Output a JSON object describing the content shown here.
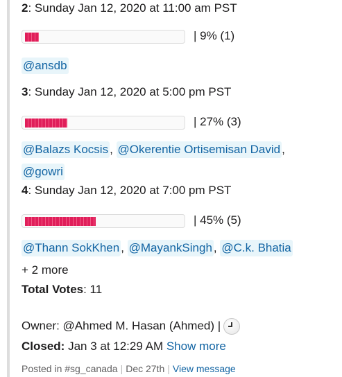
{
  "options": [
    {
      "number": "2",
      "label": ": Sunday Jan 12, 2020 at 11:00 am PST",
      "fraction": 0.09,
      "result": "|  9% (1)",
      "voters": [
        "@ansdb"
      ],
      "more": ""
    },
    {
      "number": "3",
      "label": ": Sunday Jan 12, 2020 at 5:00 pm PST",
      "fraction": 0.27,
      "result": "|  27% (3)",
      "voters": [
        "@Balazs Kocsis",
        "@Okerentie Ortisemisan David",
        "@gowri"
      ],
      "more": ""
    },
    {
      "number": "4",
      "label": ": Sunday Jan 12, 2020 at 7:00 pm PST",
      "fraction": 0.45,
      "result": "|  45% (5)",
      "voters": [
        "@Thann SokKhen",
        "@MayankSingh",
        "@C.k. Bhatia"
      ],
      "more": "+ 2 more"
    }
  ],
  "total": {
    "label": "Total Votes",
    "value": ": 11"
  },
  "owner": {
    "text": "Owner: @Ahmed M. Hasan (Ahmed)  |",
    "icon": "clock-icon"
  },
  "closed": {
    "label": "Closed:",
    "value": " Jan 3 at 12:29 AM ",
    "link": "Show more"
  },
  "footer": {
    "posted": "Posted in #sg_canada",
    "date": "Dec 27th",
    "link": "View message"
  },
  "colors": {
    "bar": "#e01e5a",
    "mention_text": "#1264a3",
    "mention_bg": "#e8f5fa"
  }
}
